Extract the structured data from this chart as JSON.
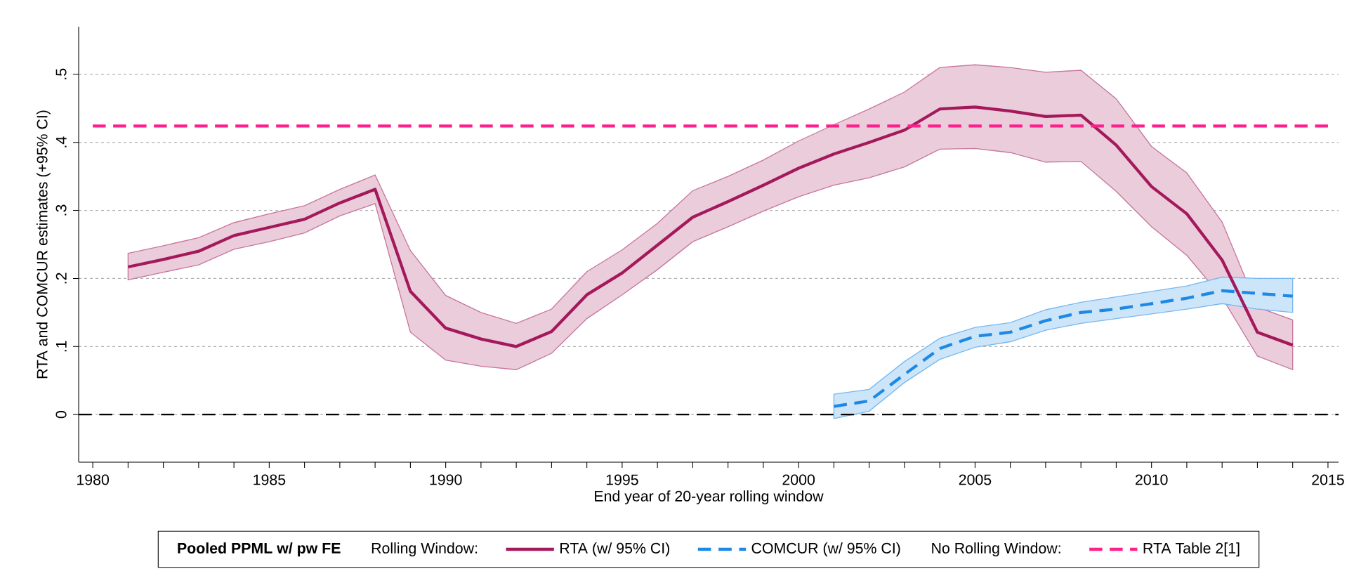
{
  "chart_data": {
    "type": "line",
    "xlabel": "End year of 20-year rolling window",
    "ylabel": "RTA and COMCUR estimates (+95% CI)",
    "legend_title": "Pooled PPML w/ pw FE",
    "annotations": [
      "Rolling Window:",
      "No Rolling Window:"
    ],
    "xlim": [
      1979.6,
      2015.3
    ],
    "ylim": [
      -0.07,
      0.57
    ],
    "xticks": [
      1980,
      {
        "value": 1981,
        "label": null
      },
      {
        "value": 1982,
        "label": null
      },
      {
        "value": 1983,
        "label": null
      },
      {
        "value": 1984,
        "label": null
      },
      1985,
      {
        "value": 1986,
        "label": null
      },
      {
        "value": 1987,
        "label": null
      },
      {
        "value": 1988,
        "label": null
      },
      {
        "value": 1989,
        "label": null
      },
      1990,
      {
        "value": 1991,
        "label": null
      },
      {
        "value": 1992,
        "label": null
      },
      {
        "value": 1993,
        "label": null
      },
      {
        "value": 1994,
        "label": null
      },
      1995,
      {
        "value": 1996,
        "label": null
      },
      {
        "value": 1997,
        "label": null
      },
      {
        "value": 1998,
        "label": null
      },
      {
        "value": 1999,
        "label": null
      },
      2000,
      {
        "value": 2001,
        "label": null
      },
      {
        "value": 2002,
        "label": null
      },
      {
        "value": 2003,
        "label": null
      },
      {
        "value": 2004,
        "label": null
      },
      2005,
      {
        "value": 2006,
        "label": null
      },
      {
        "value": 2007,
        "label": null
      },
      {
        "value": 2008,
        "label": null
      },
      {
        "value": 2009,
        "label": null
      },
      2010,
      {
        "value": 2011,
        "label": null
      },
      {
        "value": 2012,
        "label": null
      },
      {
        "value": 2013,
        "label": null
      },
      {
        "value": 2014,
        "label": null
      },
      2015
    ],
    "yticks": [
      0,
      {
        "value": 0.1,
        "label": ".1"
      },
      {
        "value": 0.2,
        "label": ".2"
      },
      {
        "value": 0.3,
        "label": ".3"
      },
      {
        "value": 0.4,
        "label": ".4"
      },
      {
        "value": 0.5,
        "label": ".5"
      }
    ],
    "grid": "y",
    "legend": "bottom",
    "ref_lines": [
      {
        "axis": "y",
        "value": 0,
        "color": "#000000",
        "line_style": "dashed"
      }
    ],
    "series": [
      {
        "name": "RTA (w/ 95% CI)",
        "color": "#a3195b",
        "line_style": "solid",
        "x": [
          1981,
          1982,
          1983,
          1984,
          1985,
          1986,
          1987,
          1988,
          1989,
          1990,
          1991,
          1992,
          1993,
          1994,
          1995,
          1996,
          1997,
          1998,
          1999,
          2000,
          2001,
          2002,
          2003,
          2004,
          2005,
          2006,
          2007,
          2008,
          2009,
          2010,
          2011,
          2012,
          2013,
          2014
        ],
        "values": [
          0.217,
          0.228,
          0.24,
          0.263,
          0.275,
          0.287,
          0.311,
          0.331,
          0.181,
          0.127,
          0.111,
          0.1,
          0.122,
          0.176,
          0.208,
          0.249,
          0.29,
          0.313,
          0.337,
          0.362,
          0.383,
          0.4,
          0.418,
          0.449,
          0.452,
          0.446,
          0.438,
          0.44,
          0.396,
          0.335,
          0.295,
          0.227,
          0.121,
          0.102
        ],
        "upper": [
          0.237,
          0.248,
          0.26,
          0.282,
          0.295,
          0.307,
          0.331,
          0.352,
          0.241,
          0.175,
          0.15,
          0.134,
          0.155,
          0.21,
          0.242,
          0.281,
          0.329,
          0.35,
          0.374,
          0.402,
          0.426,
          0.449,
          0.474,
          0.51,
          0.514,
          0.51,
          0.503,
          0.506,
          0.464,
          0.394,
          0.355,
          0.283,
          0.158,
          0.139
        ],
        "lower": [
          0.198,
          0.209,
          0.22,
          0.243,
          0.254,
          0.267,
          0.292,
          0.31,
          0.121,
          0.08,
          0.071,
          0.066,
          0.09,
          0.141,
          0.176,
          0.213,
          0.254,
          0.276,
          0.299,
          0.32,
          0.337,
          0.348,
          0.364,
          0.39,
          0.391,
          0.385,
          0.371,
          0.372,
          0.328,
          0.276,
          0.234,
          0.172,
          0.086,
          0.066
        ]
      },
      {
        "name": "COMCUR (w/ 95% CI)",
        "color": "#1e88e5",
        "line_style": "dashed",
        "x": [
          2001,
          2002,
          2003,
          2004,
          2005,
          2006,
          2007,
          2008,
          2009,
          2010,
          2011,
          2012,
          2013,
          2014
        ],
        "values": [
          0.012,
          0.02,
          0.059,
          0.097,
          0.115,
          0.121,
          0.138,
          0.15,
          0.155,
          0.163,
          0.171,
          0.182,
          0.178,
          0.174
        ],
        "upper": [
          0.03,
          0.037,
          0.078,
          0.112,
          0.128,
          0.135,
          0.154,
          0.165,
          0.173,
          0.181,
          0.189,
          0.202,
          0.2,
          0.2
        ],
        "lower": [
          -0.006,
          0.005,
          0.047,
          0.081,
          0.099,
          0.107,
          0.124,
          0.134,
          0.141,
          0.148,
          0.155,
          0.163,
          0.155,
          0.15
        ]
      },
      {
        "name": "RTA Table 2[1]",
        "color": "#ff1f8a",
        "line_style": "dashed",
        "x": [
          1980,
          2015
        ],
        "values": [
          0.424,
          0.424
        ]
      }
    ]
  }
}
